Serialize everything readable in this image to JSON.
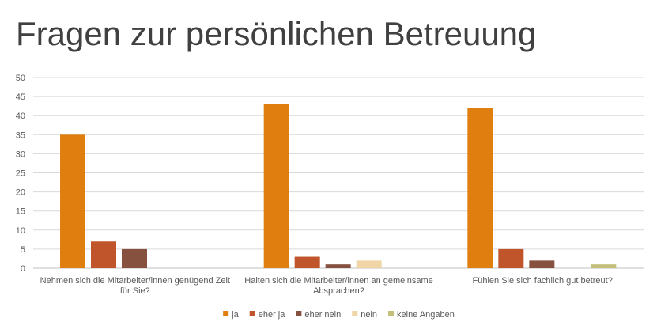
{
  "chart_data": {
    "type": "bar",
    "title": "Fragen zur persönlichen Betreuung",
    "xlabel": "",
    "ylabel": "",
    "ylim": [
      0,
      50
    ],
    "yticks": [
      0,
      5,
      10,
      15,
      20,
      25,
      30,
      35,
      40,
      45,
      50
    ],
    "grid": true,
    "legend_position": "bottom",
    "categories": [
      [
        "Nehmen sich die Mitarbeiter/innen genügend Zeit",
        "für Sie?"
      ],
      [
        "Halten sich die Mitarbeiter/innen an gemeinsame",
        "Absprachen?"
      ],
      [
        "Fühlen Sie sich fachlich gut betreut?"
      ]
    ],
    "series": [
      {
        "name": "ja",
        "color": "#E07E10",
        "values": [
          35,
          43,
          42
        ]
      },
      {
        "name": "eher ja",
        "color": "#C0542A",
        "values": [
          7,
          3,
          5
        ]
      },
      {
        "name": "eher nein",
        "color": "#875140",
        "values": [
          5,
          1,
          2
        ]
      },
      {
        "name": "nein",
        "color": "#F0D6A6",
        "values": [
          0,
          2,
          0
        ]
      },
      {
        "name": "keine Angaben",
        "color": "#C3BE78",
        "values": [
          0,
          0,
          1
        ]
      }
    ]
  }
}
